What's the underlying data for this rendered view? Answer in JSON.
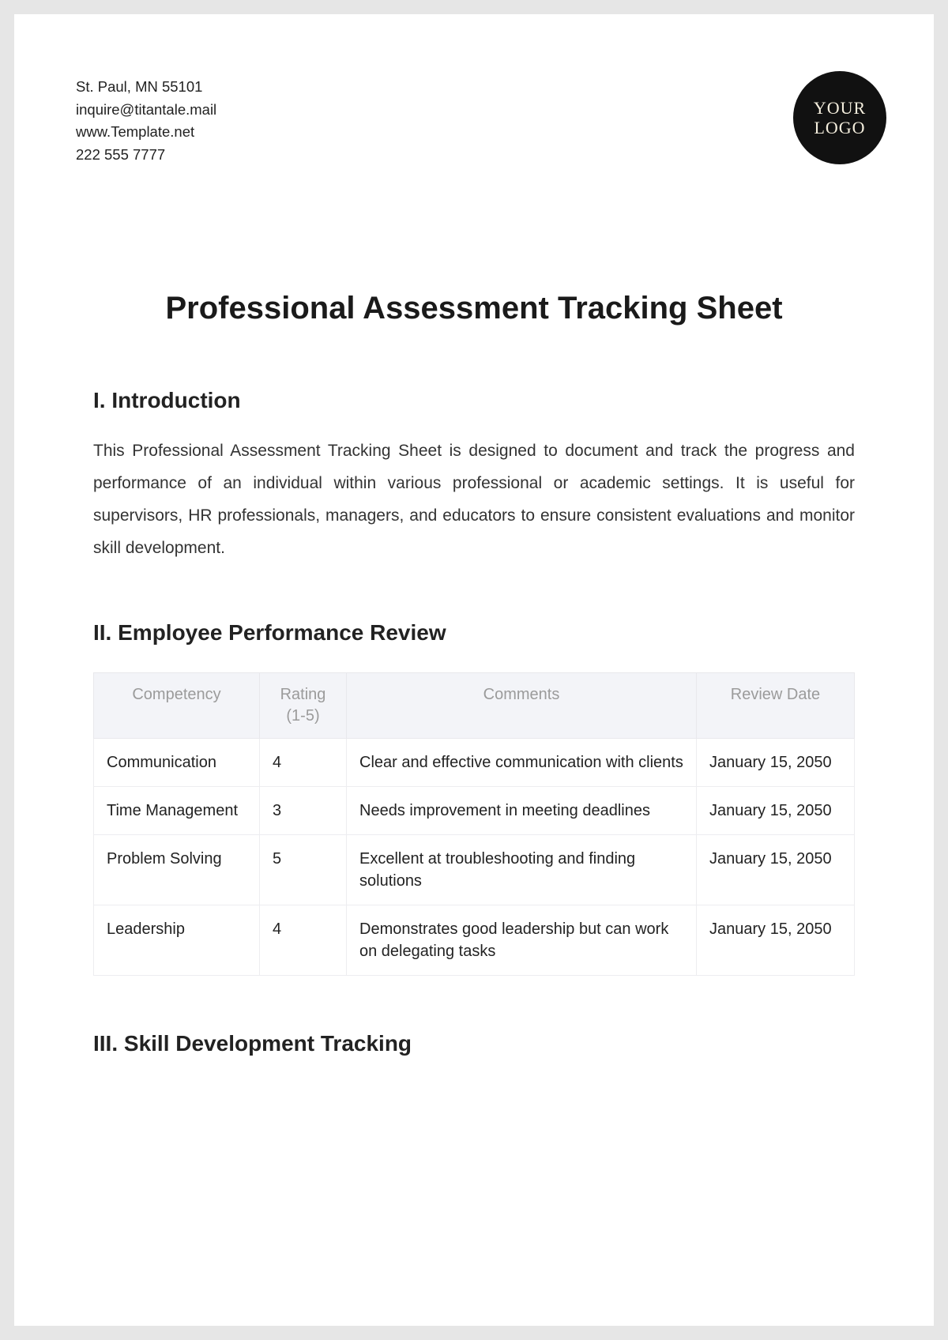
{
  "header": {
    "contact": {
      "address": "St. Paul, MN 55101",
      "email": "inquire@titantale.mail",
      "website": "www.Template.net",
      "phone": "222 555 7777"
    },
    "logo": {
      "line1": "YOUR",
      "line2": "LOGO"
    },
    "stripe_colors": {
      "dark": "#0e1626",
      "red": "#8a2a1e",
      "orange": "#d57a1f",
      "gray": "#e6e6e6"
    }
  },
  "document": {
    "title": "Professional Assessment Tracking Sheet"
  },
  "sections": {
    "intro": {
      "heading": "I. Introduction",
      "body": "This Professional Assessment Tracking Sheet is designed to document and track the progress and performance of an individual within various professional or academic settings. It is useful for supervisors, HR professionals, managers, and educators to ensure consistent evaluations and monitor skill development."
    },
    "review": {
      "heading": "II. Employee Performance Review",
      "columns": {
        "competency": "Competency",
        "rating": "Rating (1-5)",
        "comments": "Comments",
        "review_date": "Review Date"
      },
      "rows": [
        {
          "competency": "Communication",
          "rating": "4",
          "comments": "Clear and effective communication with clients",
          "review_date": "January 15, 2050"
        },
        {
          "competency": "Time Management",
          "rating": "3",
          "comments": "Needs improvement in meeting deadlines",
          "review_date": "January 15, 2050"
        },
        {
          "competency": "Problem Solving",
          "rating": "5",
          "comments": "Excellent at troubleshooting and finding solutions",
          "review_date": "January 15, 2050"
        },
        {
          "competency": "Leadership",
          "rating": "4",
          "comments": "Demonstrates good leadership but can work on delegating tasks",
          "review_date": "January 15, 2050"
        }
      ]
    },
    "skills": {
      "heading": "III. Skill Development Tracking"
    }
  }
}
